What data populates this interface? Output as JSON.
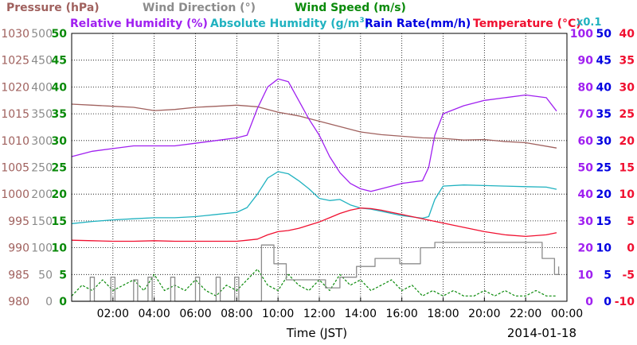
{
  "legend": {
    "pressure": {
      "text": "Pressure (hPa)",
      "color": "#a0615e"
    },
    "wind_direction": {
      "text": "Wind Direction (°)",
      "color": "#8c8c8c"
    },
    "wind_speed": {
      "text": "Wind Speed (m/s)",
      "color": "#0a8a0a"
    },
    "relative_humidity": {
      "text": "Relative Humidity (%)",
      "color": "#a020f0"
    },
    "absolute_humidity_pre": {
      "text": "Absolute Humidity (g/m",
      "color": "#20b2c0"
    },
    "absolute_humidity_sup": {
      "text": "3",
      "color": "#20b2c0"
    },
    "absolute_humidity_post": {
      "text": ")",
      "color": "#20b2c0"
    },
    "rain_rate": {
      "text": "Rain Rate(mm/h)",
      "color": "#0000e0"
    },
    "temperature": {
      "text": "Temperature (°C)",
      "color": "#f01030"
    },
    "scale_note": {
      "text": "x0.1",
      "color": "#20b2c0"
    }
  },
  "chart_data": {
    "type": "line",
    "xlabel": "Time (JST)",
    "date_label": "2014-01-18",
    "x_ticks": [
      "02:00",
      "04:00",
      "06:00",
      "08:00",
      "10:00",
      "12:00",
      "14:00",
      "16:00",
      "18:00",
      "20:00",
      "22:00",
      "00:00"
    ],
    "x_range_hours": [
      0,
      24
    ],
    "grid": true,
    "axes": {
      "pressure": {
        "ticks": [
          "1030",
          "1025",
          "1020",
          "1015",
          "1010",
          "1005",
          "1000",
          "995",
          "990",
          "985",
          "980"
        ],
        "range": [
          980,
          1030
        ],
        "color": "#a0615e",
        "side": "left"
      },
      "wind_direction": {
        "ticks": [
          "500",
          "450",
          "400",
          "350",
          "300",
          "250",
          "200",
          "150",
          "100",
          "50",
          "0"
        ],
        "range": [
          0,
          500
        ],
        "color": "#8c8c8c",
        "side": "left"
      },
      "wind_speed": {
        "ticks": [
          "50",
          "45",
          "40",
          "35",
          "30",
          "25",
          "20",
          "15",
          "10",
          "5",
          "0"
        ],
        "range": [
          0,
          50
        ],
        "color": "#0a8a0a",
        "side": "left"
      },
      "relative_humidity": {
        "ticks": [
          "100",
          "90",
          "80",
          "70",
          "60",
          "50",
          "40",
          "30",
          "20",
          "10",
          "0"
        ],
        "range": [
          0,
          100
        ],
        "color": "#a020f0",
        "side": "right"
      },
      "rain_rate": {
        "ticks": [
          "50",
          "45",
          "40",
          "35",
          "30",
          "25",
          "20",
          "15",
          "10",
          "5",
          "0"
        ],
        "range": [
          0,
          50
        ],
        "color": "#0000e0",
        "side": "right"
      },
      "temperature": {
        "ticks": [
          "40",
          "35",
          "30",
          "25",
          "20",
          "15",
          "10",
          "5",
          "0",
          "-5",
          "-10"
        ],
        "range": [
          -10,
          40
        ],
        "color": "#f01030",
        "side": "right"
      }
    },
    "series": [
      {
        "name": "Pressure (hPa)",
        "axis": "pressure",
        "color": "#a0615e",
        "x": [
          0,
          1,
          2,
          3,
          4,
          5,
          6,
          7,
          8,
          9,
          10,
          11,
          12,
          13,
          14,
          15,
          16,
          17,
          18,
          19,
          20,
          21,
          22,
          23.5
        ],
        "y": [
          1016.8,
          1016.6,
          1016.4,
          1016.2,
          1015.6,
          1015.8,
          1016.2,
          1016.4,
          1016.6,
          1016.3,
          1015.3,
          1014.6,
          1013.6,
          1012.6,
          1011.6,
          1011.1,
          1010.8,
          1010.5,
          1010.4,
          1010.1,
          1010.2,
          1009.8,
          1009.6,
          1008.6
        ]
      },
      {
        "name": "Relative Humidity (%)",
        "axis": "relative_humidity",
        "color": "#a020f0",
        "x": [
          0,
          1,
          2,
          3,
          4,
          5,
          6,
          7,
          8,
          8.5,
          9,
          9.5,
          10,
          10.5,
          11,
          11.5,
          12,
          12.5,
          13,
          13.5,
          14,
          14.5,
          15,
          16,
          17,
          17.3,
          17.6,
          18,
          19,
          20,
          21,
          22,
          23,
          23.5
        ],
        "y": [
          54,
          56,
          57,
          58,
          58,
          58,
          59,
          60,
          61,
          62,
          72,
          80,
          83,
          82,
          75,
          68,
          62,
          54,
          48,
          44,
          42,
          41,
          42,
          44,
          45,
          50,
          62,
          70,
          73,
          75,
          76,
          77,
          76,
          71
        ]
      },
      {
        "name": "Absolute Humidity (g/m3)",
        "axis": "rain_rate",
        "color": "#20b2c0",
        "x": [
          0,
          1,
          2,
          3,
          4,
          5,
          6,
          7,
          8,
          8.5,
          9,
          9.5,
          10,
          10.5,
          11,
          11.5,
          12,
          12.5,
          13,
          13.5,
          14,
          14.5,
          15,
          16,
          17,
          17.3,
          17.6,
          18,
          19,
          20,
          21,
          22,
          23,
          23.5
        ],
        "y": [
          14.5,
          14.9,
          15.2,
          15.4,
          15.6,
          15.6,
          15.8,
          16.2,
          16.6,
          17.5,
          20.0,
          23.0,
          24.2,
          23.8,
          22.5,
          21.0,
          19.2,
          18.8,
          19.0,
          18.0,
          17.4,
          17.2,
          16.8,
          16.0,
          15.5,
          15.8,
          19.0,
          21.5,
          21.7,
          21.6,
          21.5,
          21.4,
          21.3,
          20.9
        ]
      },
      {
        "name": "Temperature (°C)",
        "axis": "temperature",
        "color": "#f01030",
        "x": [
          0,
          1,
          2,
          3,
          4,
          5,
          6,
          7,
          8,
          8.5,
          9,
          9.5,
          10,
          10.5,
          11,
          11.5,
          12,
          12.5,
          13,
          13.5,
          14,
          14.5,
          15,
          15.5,
          16,
          16.5,
          17,
          18,
          19,
          20,
          21,
          22,
          23,
          23.5
        ],
        "y": [
          1.4,
          1.3,
          1.2,
          1.2,
          1.3,
          1.2,
          1.2,
          1.2,
          1.2,
          1.4,
          1.6,
          2.4,
          3.0,
          3.2,
          3.6,
          4.2,
          4.8,
          5.6,
          6.4,
          7.0,
          7.4,
          7.3,
          7.0,
          6.6,
          6.2,
          5.8,
          5.4,
          4.6,
          3.8,
          3.0,
          2.4,
          2.1,
          2.4,
          2.8
        ]
      },
      {
        "name": "Wind Direction (°)",
        "axis": "wind_direction",
        "color": "#8c8c8c",
        "step": true,
        "x": [
          0,
          0.9,
          1.1,
          1.9,
          2.1,
          3.0,
          3.2,
          3.7,
          3.9,
          4.8,
          5.0,
          6.0,
          6.2,
          7.0,
          7.2,
          7.9,
          8.1,
          9.1,
          9.2,
          9.6,
          9.8,
          10.2,
          10.4,
          12.1,
          12.3,
          12.8,
          13.0,
          13.6,
          13.8,
          14.5,
          14.7,
          15.6,
          15.9,
          16.6,
          16.9,
          17.4,
          17.6,
          22.6,
          22.8,
          23.4,
          23.6
        ],
        "y": [
          0,
          45,
          0,
          45,
          0,
          40,
          0,
          45,
          0,
          45,
          0,
          45,
          0,
          45,
          0,
          45,
          0,
          0,
          105,
          105,
          70,
          70,
          40,
          40,
          25,
          25,
          45,
          45,
          65,
          65,
          80,
          80,
          70,
          70,
          100,
          100,
          110,
          110,
          80,
          50,
          65
        ]
      },
      {
        "name": "Wind Speed (m/s)",
        "axis": "wind_speed",
        "color": "#0a8a0a",
        "x": [
          0,
          0.5,
          1,
          1.5,
          2,
          2.5,
          3,
          3.5,
          4,
          4.5,
          5,
          5.5,
          6,
          6.5,
          7,
          7.5,
          8,
          8.5,
          9,
          9.5,
          10,
          10.5,
          11,
          11.5,
          12,
          12.5,
          13,
          13.5,
          14,
          14.5,
          15,
          15.5,
          16,
          16.5,
          17,
          17.5,
          18,
          18.5,
          19,
          19.5,
          20,
          20.5,
          21,
          21.5,
          22,
          22.5,
          23,
          23.5
        ],
        "y": [
          1,
          3,
          2,
          4,
          2,
          3,
          4,
          2,
          5,
          2,
          3,
          2,
          4,
          2,
          1,
          3,
          2,
          4,
          6,
          3,
          2,
          5,
          3,
          2,
          4,
          2,
          5,
          3,
          4,
          2,
          3,
          4,
          2,
          3,
          1,
          2,
          1,
          2,
          1,
          1,
          2,
          1,
          2,
          1,
          1,
          2,
          1,
          1
        ]
      }
    ]
  }
}
